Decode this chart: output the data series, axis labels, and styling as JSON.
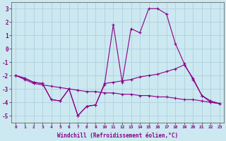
{
  "x": [
    0,
    1,
    2,
    3,
    4,
    5,
    6,
    7,
    8,
    9,
    10,
    11,
    12,
    13,
    14,
    15,
    16,
    17,
    18,
    19,
    20,
    21,
    22,
    23
  ],
  "y_main": [
    -2.0,
    -2.2,
    -2.5,
    -2.6,
    -3.8,
    -3.9,
    -3.0,
    -5.0,
    -4.3,
    -4.2,
    -2.7,
    1.8,
    -2.5,
    1.5,
    1.2,
    3.0,
    3.0,
    2.6,
    0.4,
    -1.1,
    -2.3,
    -3.5,
    -4.0,
    -4.1
  ],
  "y_line2": [
    -2.0,
    -2.2,
    -2.5,
    -2.6,
    -3.8,
    -3.9,
    -3.0,
    -5.0,
    -4.3,
    -4.2,
    -2.6,
    -2.5,
    -2.4,
    -2.3,
    -2.1,
    -2.0,
    -1.9,
    -1.7,
    -1.5,
    -1.2,
    -2.2,
    -3.5,
    -3.9,
    -4.1
  ],
  "y_line3": [
    -2.0,
    -2.3,
    -2.6,
    -2.7,
    -2.8,
    -2.9,
    -3.0,
    -3.1,
    -3.2,
    -3.2,
    -3.3,
    -3.3,
    -3.4,
    -3.4,
    -3.5,
    -3.5,
    -3.6,
    -3.6,
    -3.7,
    -3.8,
    -3.8,
    -3.9,
    -4.0,
    -4.1
  ],
  "color": "#880088",
  "bg_color": "#cce8f0",
  "grid_color": "#aaccdd",
  "ylim": [
    -5.5,
    3.5
  ],
  "xlim": [
    -0.5,
    23.5
  ],
  "yticks": [
    -5,
    -4,
    -3,
    -2,
    -1,
    0,
    1,
    2,
    3
  ],
  "xtick_labels": [
    "0",
    "1",
    "2",
    "3",
    "4",
    "5",
    "6",
    "7",
    "8",
    "9",
    "10",
    "11",
    "12",
    "13",
    "14",
    "15",
    "16",
    "17",
    "18",
    "19",
    "20",
    "21",
    "22",
    "23"
  ],
  "xlabel": "Windchill (Refroidissement éolien,°C)",
  "figwidth": 3.2,
  "figheight": 2.0,
  "dpi": 100
}
